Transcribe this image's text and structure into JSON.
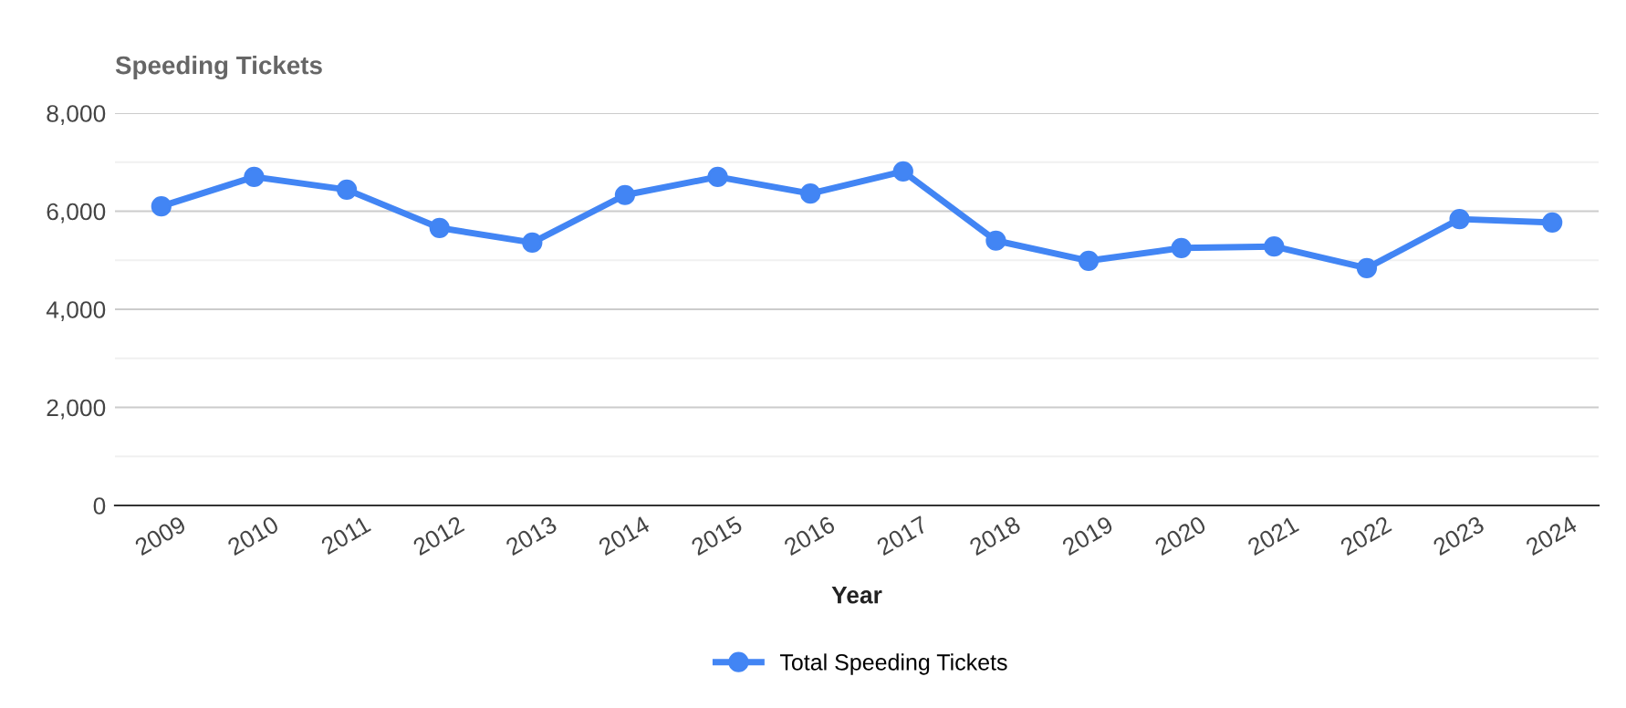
{
  "chart_data": {
    "type": "line",
    "title": "Speeding Tickets",
    "xlabel": "Year",
    "categories": [
      "2009",
      "2010",
      "2011",
      "2012",
      "2013",
      "2014",
      "2015",
      "2016",
      "2017",
      "2018",
      "2019",
      "2020",
      "2021",
      "2022",
      "2023",
      "2024"
    ],
    "series": [
      {
        "name": "Total Speeding Tickets",
        "color": "#4285f4",
        "values": [
          6100,
          6700,
          6440,
          5660,
          5360,
          6330,
          6700,
          6360,
          6810,
          5400,
          4990,
          5250,
          5280,
          4840,
          5840,
          5770
        ]
      }
    ],
    "ylim": [
      0,
      8000
    ],
    "yticks": [
      0,
      {
        "value": 1000,
        "label": null
      },
      {
        "value": 2000,
        "label": "2,000"
      },
      {
        "value": 3000,
        "label": null
      },
      {
        "value": 4000,
        "label": "4,000"
      },
      {
        "value": 5000,
        "label": null
      },
      {
        "value": 6000,
        "label": "6,000"
      },
      {
        "value": 7000,
        "label": null
      },
      {
        "value": 8000,
        "label": "8,000"
      }
    ],
    "grid": "y",
    "legend": "bottom",
    "marker": "circle",
    "line_style": "solid"
  }
}
